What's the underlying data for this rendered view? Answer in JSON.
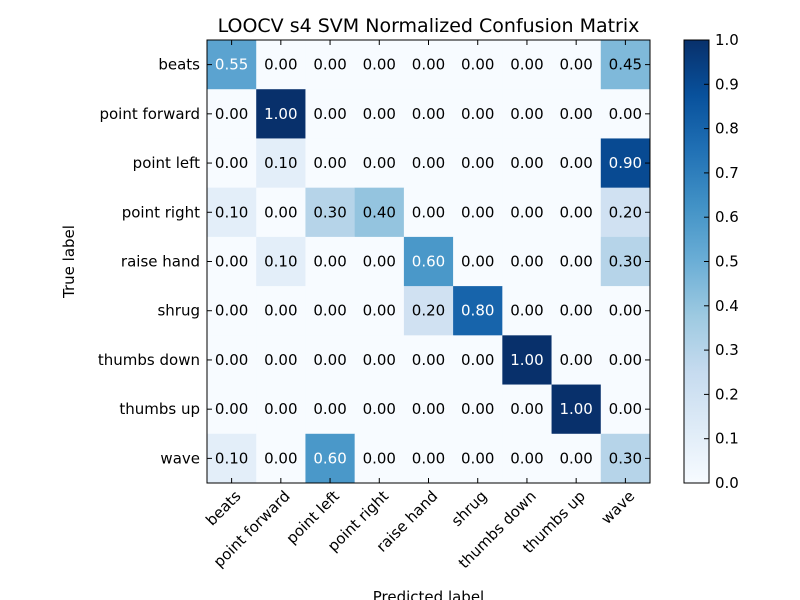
{
  "chart_data": {
    "type": "heatmap",
    "title": "LOOCV s4 SVM Normalized Confusion Matrix",
    "xlabel": "Predicted label",
    "ylabel": "True label",
    "x_categories": [
      "beats",
      "point forward",
      "point left",
      "point right",
      "raise hand",
      "shrug",
      "thumbs down",
      "thumbs up",
      "wave"
    ],
    "y_categories": [
      "beats",
      "point forward",
      "point left",
      "point right",
      "raise hand",
      "shrug",
      "thumbs down",
      "thumbs up",
      "wave"
    ],
    "matrix": [
      [
        0.55,
        0.0,
        0.0,
        0.0,
        0.0,
        0.0,
        0.0,
        0.0,
        0.45
      ],
      [
        0.0,
        1.0,
        0.0,
        0.0,
        0.0,
        0.0,
        0.0,
        0.0,
        0.0
      ],
      [
        0.0,
        0.1,
        0.0,
        0.0,
        0.0,
        0.0,
        0.0,
        0.0,
        0.9
      ],
      [
        0.1,
        0.0,
        0.3,
        0.4,
        0.0,
        0.0,
        0.0,
        0.0,
        0.2
      ],
      [
        0.0,
        0.1,
        0.0,
        0.0,
        0.6,
        0.0,
        0.0,
        0.0,
        0.3
      ],
      [
        0.0,
        0.0,
        0.0,
        0.0,
        0.2,
        0.8,
        0.0,
        0.0,
        0.0
      ],
      [
        0.0,
        0.0,
        0.0,
        0.0,
        0.0,
        0.0,
        1.0,
        0.0,
        0.0
      ],
      [
        0.0,
        0.0,
        0.0,
        0.0,
        0.0,
        0.0,
        0.0,
        1.0,
        0.0
      ],
      [
        0.1,
        0.0,
        0.6,
        0.0,
        0.0,
        0.0,
        0.0,
        0.0,
        0.3
      ]
    ],
    "colorbar": {
      "range": [
        0.0,
        1.0
      ],
      "ticks": [
        "0.0",
        "0.1",
        "0.2",
        "0.3",
        "0.4",
        "0.5",
        "0.6",
        "0.7",
        "0.8",
        "0.9",
        "1.0"
      ]
    },
    "colormap": "Blues",
    "value_format": "2 decimals"
  }
}
